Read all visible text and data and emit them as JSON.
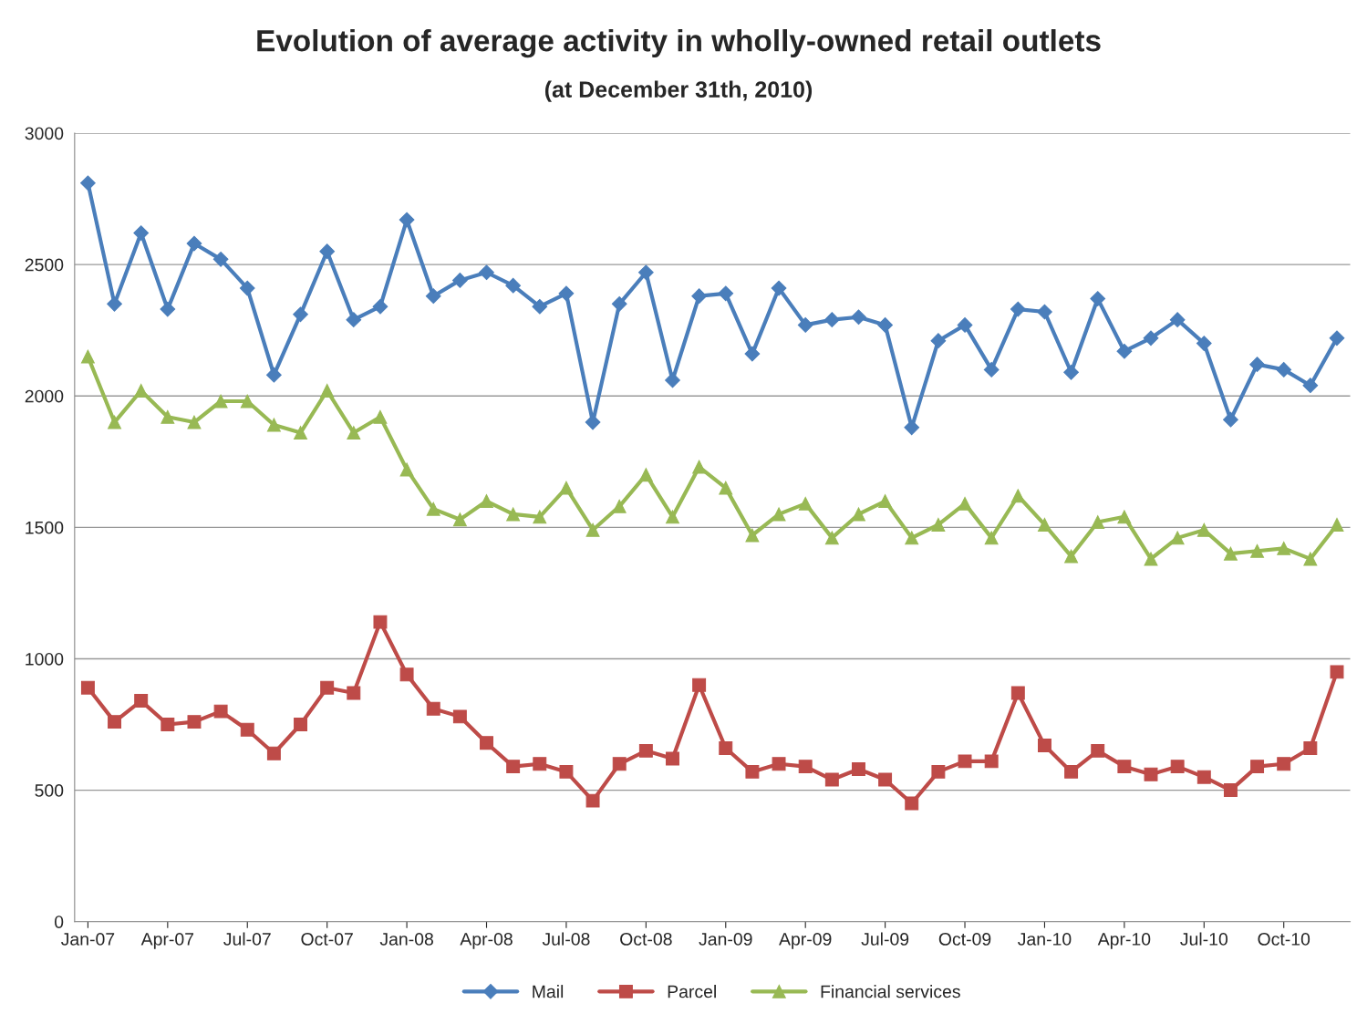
{
  "chart_data": {
    "type": "line",
    "title": "Evolution of average activity in wholly-owned retail outlets",
    "subtitle": "(at December 31th, 2010)",
    "categories": [
      "Jan-07",
      null,
      null,
      "Apr-07",
      null,
      null,
      "Jul-07",
      null,
      null,
      "Oct-07",
      null,
      null,
      "Jan-08",
      null,
      null,
      "Apr-08",
      null,
      null,
      "Jul-08",
      null,
      null,
      "Oct-08",
      null,
      null,
      "Jan-09",
      null,
      null,
      "Apr-09",
      null,
      null,
      "Jul-09",
      null,
      null,
      "Oct-09",
      null,
      null,
      "Jan-10",
      null,
      null,
      "Apr-10",
      null,
      null,
      "Jul-10",
      null,
      null,
      "Oct-10",
      null,
      null
    ],
    "series": [
      {
        "name": "Mail",
        "color": "#4a7ebb",
        "marker": "diamond",
        "values": [
          2810,
          2350,
          2620,
          2330,
          2580,
          2520,
          2410,
          2080,
          2310,
          2550,
          2290,
          2340,
          2670,
          2380,
          2440,
          2470,
          2420,
          2340,
          2390,
          1900,
          2350,
          2470,
          2060,
          2380,
          2390,
          2160,
          2410,
          2270,
          2290,
          2300,
          2270,
          1880,
          2210,
          2270,
          2100,
          2330,
          2320,
          2090,
          2370,
          2170,
          2220,
          2290,
          2200,
          1910,
          2120,
          2100,
          2040,
          2220
        ]
      },
      {
        "name": "Parcel",
        "color": "#be4b48",
        "marker": "square",
        "values": [
          890,
          760,
          840,
          750,
          760,
          800,
          730,
          640,
          750,
          890,
          870,
          1140,
          940,
          810,
          780,
          680,
          590,
          600,
          570,
          460,
          600,
          650,
          620,
          900,
          660,
          570,
          600,
          590,
          540,
          580,
          540,
          450,
          570,
          610,
          610,
          870,
          670,
          570,
          650,
          590,
          560,
          590,
          550,
          500,
          590,
          600,
          660,
          950
        ]
      },
      {
        "name": "Financial services",
        "color": "#98b954",
        "marker": "triangle",
        "values": [
          2150,
          1900,
          2020,
          1920,
          1900,
          1980,
          1980,
          1890,
          1860,
          2020,
          1860,
          1920,
          1720,
          1570,
          1530,
          1600,
          1550,
          1540,
          1650,
          1490,
          1580,
          1700,
          1540,
          1730,
          1650,
          1470,
          1550,
          1590,
          1460,
          1550,
          1600,
          1460,
          1510,
          1590,
          1460,
          1620,
          1510,
          1390,
          1520,
          1540,
          1380,
          1460,
          1490,
          1400,
          1410,
          1420,
          1380,
          1510
        ]
      }
    ],
    "ylim": [
      0,
      3000
    ],
    "yticks": [
      0,
      500,
      1000,
      1500,
      2000,
      2500,
      3000
    ],
    "grid": "y",
    "legend": "bottom",
    "line_style": "solid"
  }
}
